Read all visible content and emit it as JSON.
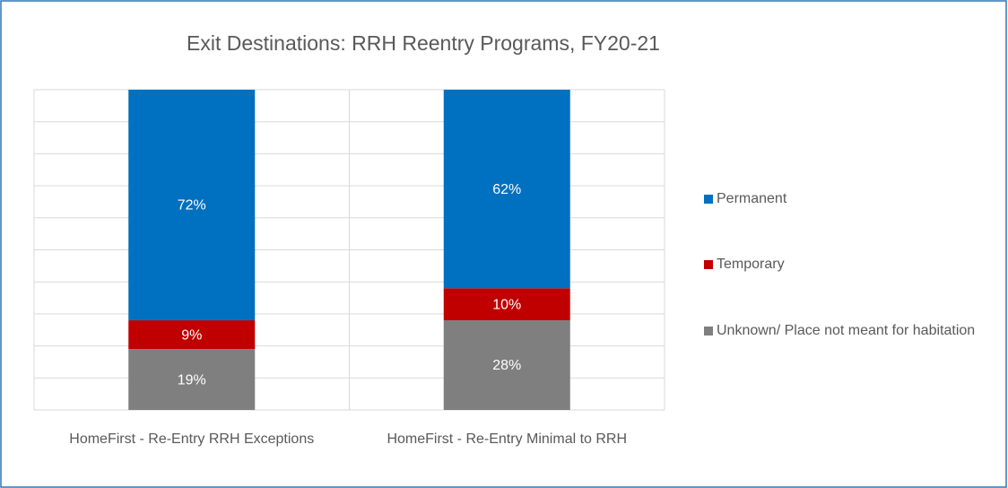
{
  "chart_data": {
    "type": "stacked_bar",
    "title": "Exit Destinations: RRH Reentry Programs, FY20-21",
    "categories": [
      "HomeFirst - Re-Entry RRH Exceptions",
      "HomeFirst - Re-Entry Minimal to RRH"
    ],
    "series": [
      {
        "name": "Unknown/ Place not meant for habitation",
        "color": "#7f7f7f",
        "values": [
          19,
          28
        ],
        "value_labels": [
          "19%",
          "28%"
        ]
      },
      {
        "name": "Temporary",
        "color": "#c00000",
        "values": [
          9,
          10
        ],
        "value_labels": [
          "9%",
          "10%"
        ]
      },
      {
        "name": "Permanent",
        "color": "#0070c0",
        "values": [
          72,
          62
        ],
        "value_labels": [
          "72%",
          "62%"
        ]
      }
    ],
    "ylim": [
      0,
      100
    ],
    "yticks": [
      0,
      10,
      20,
      30,
      40,
      50,
      60,
      70,
      80,
      90,
      100
    ],
    "grid": true,
    "legend": "right"
  }
}
